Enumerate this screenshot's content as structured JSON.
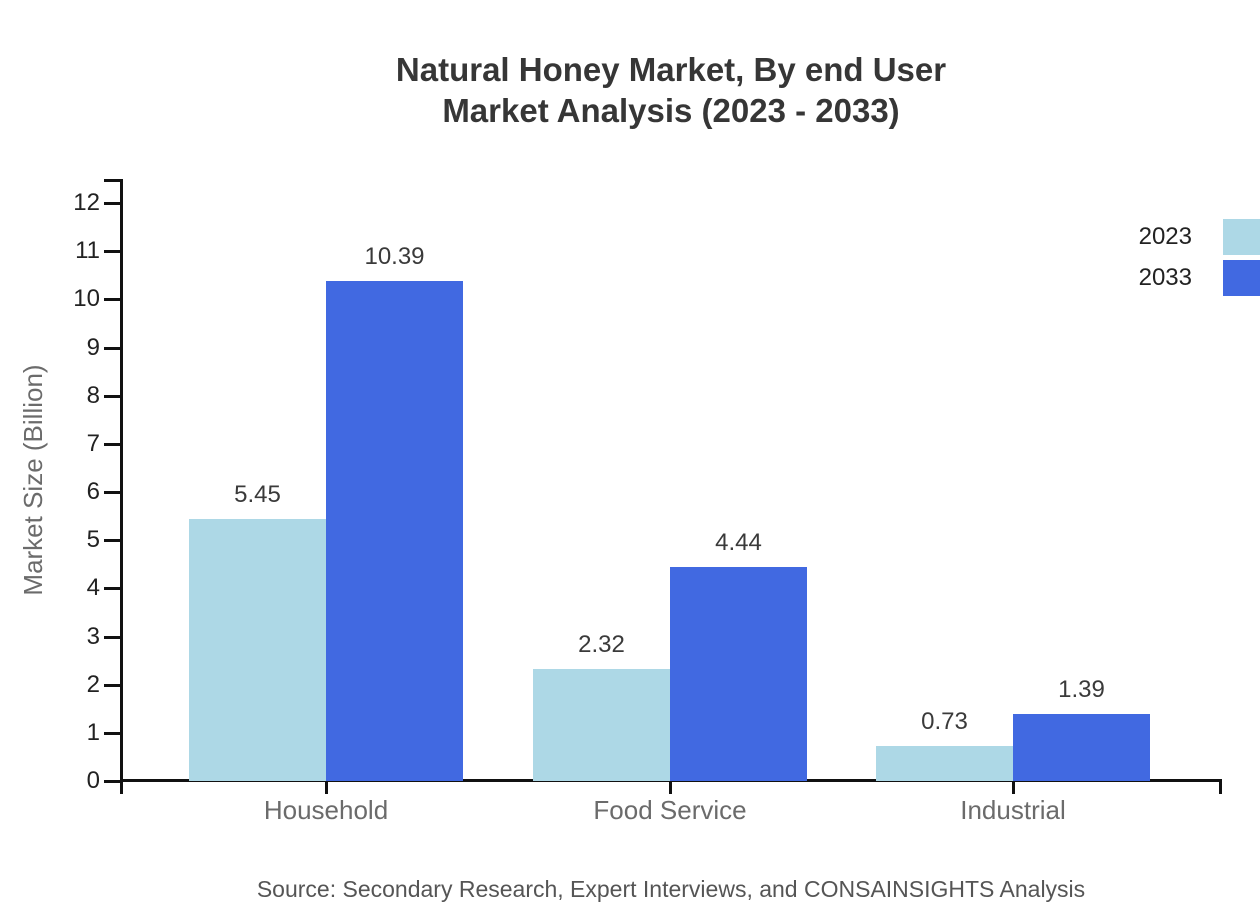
{
  "title": {
    "line1": "Natural Honey Market, By end User",
    "line2": "Market Analysis (2023 - 2033)"
  },
  "source": "Source: Secondary Research, Expert Interviews, and CONSAINSIGHTS Analysis",
  "chart_data": {
    "type": "bar",
    "title": "Natural Honey Market, By end User Market Analysis (2023 - 2033)",
    "categories": [
      "Household",
      "Food Service",
      "Industrial"
    ],
    "series": [
      {
        "name": "2023",
        "color": "#ADD8E6",
        "values": [
          5.45,
          2.32,
          0.73
        ]
      },
      {
        "name": "2033",
        "color": "#4169E1",
        "values": [
          10.39,
          4.44,
          1.39
        ]
      }
    ],
    "xlabel": "",
    "ylabel": "Market Size (Billion)",
    "ylim": [
      0,
      12.5
    ],
    "yticks": [
      0,
      1,
      2,
      3,
      4,
      5,
      6,
      7,
      8,
      9,
      10,
      11,
      12
    ],
    "grid": false,
    "legend_position": "top-right",
    "value_labels": true
  }
}
